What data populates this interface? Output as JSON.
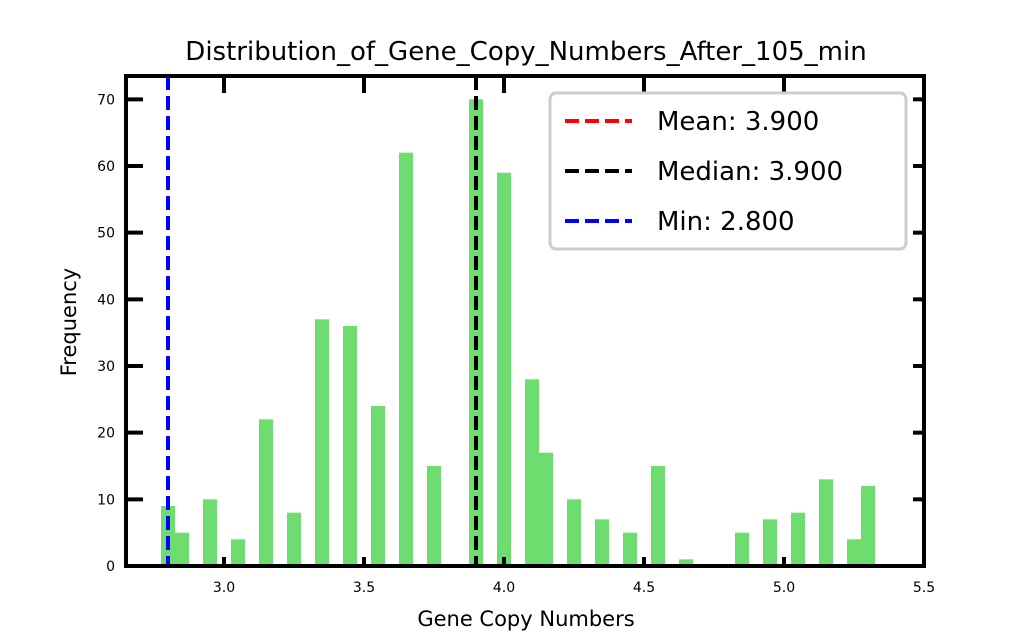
{
  "chart_data": {
    "type": "bar",
    "title": "Distribution_of_Gene_Copy_Numbers_After_105_min",
    "xlabel": "Gene Copy Numbers",
    "ylabel": "Frequency",
    "xlim": [
      2.65,
      5.5
    ],
    "ylim": [
      0,
      73.5
    ],
    "xticks": [
      3.0,
      3.5,
      4.0,
      4.5,
      5.0,
      5.5
    ],
    "xtick_labels": [
      "3.0",
      "3.5",
      "4.0",
      "4.5",
      "5.0",
      "5.5"
    ],
    "yticks": [
      0,
      10,
      20,
      30,
      40,
      50,
      60,
      70
    ],
    "ytick_labels": [
      "0",
      "10",
      "20",
      "30",
      "40",
      "50",
      "60",
      "70"
    ],
    "bar_color": "#6fdc6f",
    "bar_width": 0.05,
    "bars": [
      {
        "x": 2.8,
        "value": 9
      },
      {
        "x": 2.85,
        "value": 5
      },
      {
        "x": 2.95,
        "value": 10
      },
      {
        "x": 3.05,
        "value": 4
      },
      {
        "x": 3.15,
        "value": 22
      },
      {
        "x": 3.25,
        "value": 8
      },
      {
        "x": 3.35,
        "value": 37
      },
      {
        "x": 3.45,
        "value": 36
      },
      {
        "x": 3.55,
        "value": 24
      },
      {
        "x": 3.65,
        "value": 62
      },
      {
        "x": 3.75,
        "value": 15
      },
      {
        "x": 3.9,
        "value": 70
      },
      {
        "x": 4.0,
        "value": 59
      },
      {
        "x": 4.1,
        "value": 28
      },
      {
        "x": 4.15,
        "value": 17
      },
      {
        "x": 4.25,
        "value": 10
      },
      {
        "x": 4.35,
        "value": 7
      },
      {
        "x": 4.45,
        "value": 5
      },
      {
        "x": 4.55,
        "value": 15
      },
      {
        "x": 4.65,
        "value": 1
      },
      {
        "x": 4.85,
        "value": 5
      },
      {
        "x": 4.95,
        "value": 7
      },
      {
        "x": 5.05,
        "value": 8
      },
      {
        "x": 5.15,
        "value": 13
      },
      {
        "x": 5.25,
        "value": 4
      },
      {
        "x": 5.3,
        "value": 12
      }
    ],
    "reference_lines": [
      {
        "label": "Mean: 3.900",
        "x": 3.9,
        "color": "#ff0000",
        "style": "dashed"
      },
      {
        "label": "Median: 3.900",
        "x": 3.9,
        "color": "#000000",
        "style": "dashed"
      },
      {
        "label": "Min: 2.800",
        "x": 2.8,
        "color": "#0000ff",
        "style": "dashed"
      }
    ],
    "legend_position": "top-right",
    "grid": false
  }
}
